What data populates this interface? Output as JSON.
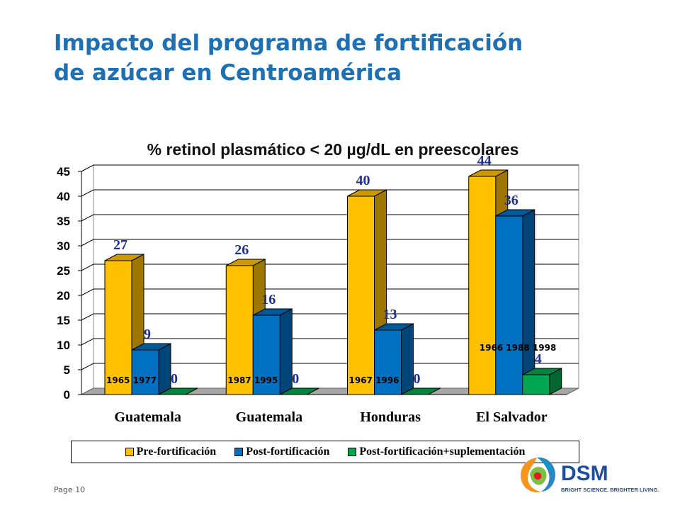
{
  "slide": {
    "title_line1": "Impacto del programa de fortificación",
    "title_line2": "de azúcar en Centroamérica",
    "page_label": "Page 10"
  },
  "chart_data": {
    "type": "bar",
    "title": "% retinol plasmático < 20 µg/dL en preescolares",
    "categories": [
      "Guatemala",
      "Guatemala",
      "Honduras",
      "El Salvador"
    ],
    "period_labels": [
      "1965 1977",
      "1987 1995",
      "1967 1996",
      "1966 1988 1998"
    ],
    "series": [
      {
        "name": "Pre-fortificación",
        "values": [
          27,
          26,
          40,
          44
        ],
        "color": "#ffc000"
      },
      {
        "name": "Post-fortificación",
        "values": [
          9,
          16,
          13,
          36
        ],
        "color": "#0070c0"
      },
      {
        "name": "Post-fortificación+suplementación",
        "values": [
          0,
          0,
          0,
          4
        ],
        "color": "#00a651"
      }
    ],
    "ylim": [
      0,
      45
    ],
    "yticks": [
      0,
      5,
      10,
      15,
      20,
      25,
      30,
      35,
      40,
      45
    ],
    "grid": true,
    "three_d": true,
    "legend_position": "bottom",
    "label_color": "#1f2f8f"
  },
  "logo": {
    "name": "DSM",
    "tagline": "BRIGHT SCIENCE. BRIGHTER LIVING.",
    "color": "#1e4d9b"
  }
}
